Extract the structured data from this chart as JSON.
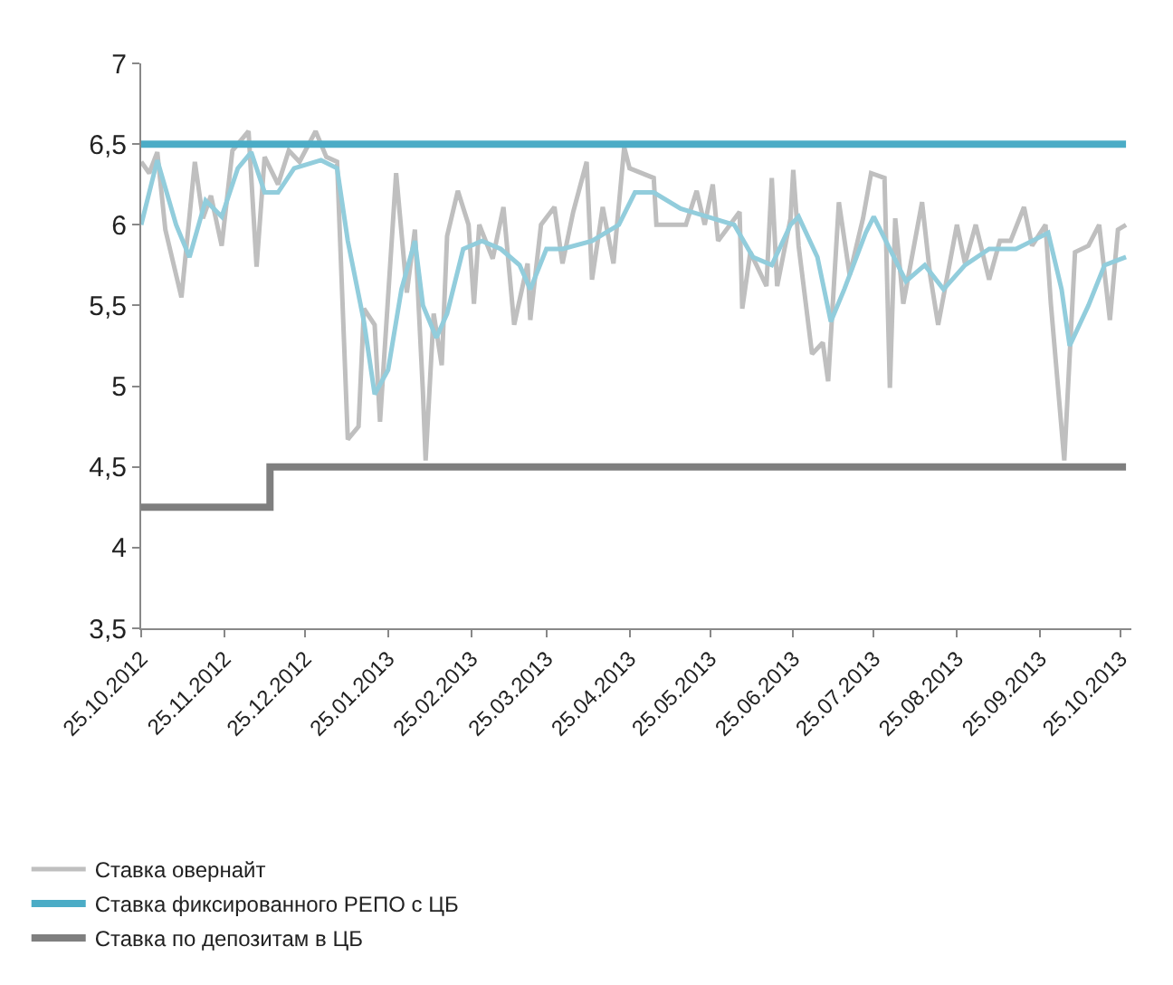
{
  "chart_data": {
    "type": "line",
    "legend": "bottom",
    "marker": "none",
    "line_style": "solid",
    "xlim": [
      "2012-10-25",
      "2013-10-29"
    ],
    "xticks": [
      {
        "value": "2012-10-25",
        "label": "25.10.2012"
      },
      {
        "value": "2012-11-25",
        "label": "25.11.2012"
      },
      {
        "value": "2012-12-25",
        "label": "25.12.2012"
      },
      {
        "value": "2013-01-25",
        "label": "25.01.2013"
      },
      {
        "value": "2013-02-25",
        "label": "25.02.2013"
      },
      {
        "value": "2013-03-25",
        "label": "25.03.2013"
      },
      {
        "value": "2013-04-25",
        "label": "25.04.2013"
      },
      {
        "value": "2013-05-25",
        "label": "25.05.2013"
      },
      {
        "value": "2013-06-25",
        "label": "25.06.2013"
      },
      {
        "value": "2013-07-25",
        "label": "25.07.2013"
      },
      {
        "value": "2013-08-25",
        "label": "25.08.2013"
      },
      {
        "value": "2013-09-25",
        "label": "25.09.2013"
      },
      {
        "value": "2013-10-25",
        "label": "25.10.2013"
      }
    ],
    "ylim": [
      3.5,
      7
    ],
    "yticks": [
      {
        "value": 3.5,
        "label": "3,5"
      },
      4,
      {
        "value": 4.5,
        "label": "4,5"
      },
      5,
      {
        "value": 5.5,
        "label": "5,5"
      },
      6,
      {
        "value": 6.5,
        "label": "6,5"
      },
      7
    ],
    "series": [
      {
        "name": "Ставка овернайт",
        "color": "#bfbfbf",
        "x": [
          "2012-10-25",
          "2012-10-28",
          "2012-10-31",
          "2012-11-03",
          "2012-11-09",
          "2012-11-14",
          "2012-11-17",
          "2012-11-20",
          "2012-11-24",
          "2012-11-28",
          "2012-12-04",
          "2012-12-07",
          "2012-12-10",
          "2012-12-15",
          "2012-12-19",
          "2012-12-23",
          "2012-12-29",
          "2013-01-02",
          "2013-01-06",
          "2013-01-10",
          "2013-01-14",
          "2013-01-16",
          "2013-01-20",
          "2013-01-22",
          "2013-01-28",
          "2013-02-01",
          "2013-02-04",
          "2013-02-07",
          "2013-02-08",
          "2013-02-11",
          "2013-02-14",
          "2013-02-16",
          "2013-02-20",
          "2013-02-24",
          "2013-02-26",
          "2013-02-28",
          "2013-03-05",
          "2013-03-09",
          "2013-03-13",
          "2013-03-18",
          "2013-03-19",
          "2013-03-23",
          "2013-03-28",
          "2013-03-31",
          "2013-04-04",
          "2013-04-09",
          "2013-04-11",
          "2013-04-15",
          "2013-04-19",
          "2013-04-23",
          "2013-04-25",
          "2013-05-04",
          "2013-05-05",
          "2013-05-16",
          "2013-05-20",
          "2013-05-23",
          "2013-05-26",
          "2013-05-28",
          "2013-06-05",
          "2013-06-06",
          "2013-06-09",
          "2013-06-15",
          "2013-06-17",
          "2013-06-19",
          "2013-06-24",
          "2013-06-25",
          "2013-06-27",
          "2013-07-02",
          "2013-07-06",
          "2013-07-08",
          "2013-07-12",
          "2013-07-16",
          "2013-07-21",
          "2013-07-24",
          "2013-07-29",
          "2013-07-31",
          "2013-08-02",
          "2013-08-05",
          "2013-08-12",
          "2013-08-15",
          "2013-08-18",
          "2013-08-25",
          "2013-08-28",
          "2013-09-01",
          "2013-09-06",
          "2013-09-10",
          "2013-09-14",
          "2013-09-19",
          "2013-09-22",
          "2013-09-27",
          "2013-09-29",
          "2013-10-04",
          "2013-10-08",
          "2013-10-13",
          "2013-10-17",
          "2013-10-21",
          "2013-10-24",
          "2013-10-27"
        ],
        "values": [
          6.39,
          6.32,
          6.45,
          5.97,
          5.55,
          6.39,
          6.04,
          6.18,
          5.87,
          6.46,
          6.58,
          5.74,
          6.42,
          6.25,
          6.46,
          6.39,
          6.58,
          6.42,
          6.39,
          4.67,
          4.75,
          5.48,
          5.38,
          4.78,
          6.32,
          5.58,
          5.97,
          4.96,
          4.54,
          5.45,
          5.13,
          5.93,
          6.21,
          6.0,
          5.51,
          6.0,
          5.79,
          6.11,
          5.38,
          5.76,
          5.41,
          6.0,
          6.11,
          5.76,
          6.08,
          6.39,
          5.66,
          6.11,
          5.76,
          6.48,
          6.35,
          6.29,
          6.0,
          6.0,
          6.21,
          6.0,
          6.25,
          5.9,
          6.08,
          5.48,
          5.83,
          5.62,
          6.29,
          5.62,
          6.04,
          6.34,
          5.87,
          5.2,
          5.27,
          5.03,
          6.14,
          5.69,
          6.04,
          6.32,
          6.29,
          4.99,
          6.04,
          5.51,
          6.14,
          5.69,
          5.38,
          6.0,
          5.76,
          6.0,
          5.66,
          5.9,
          5.9,
          6.11,
          5.87,
          6.0,
          5.51,
          4.54,
          5.83,
          5.87,
          6.0,
          5.41,
          5.97,
          6.0
        ]
      },
      {
        "color": "#92cddc",
        "x": [
          "2012-10-25",
          "2012-10-31",
          "2012-11-07",
          "2012-11-12",
          "2012-11-18",
          "2012-11-24",
          "2012-11-30",
          "2012-12-05",
          "2012-12-10",
          "2012-12-15",
          "2012-12-21",
          "2012-12-31",
          "2013-01-06",
          "2013-01-10",
          "2013-01-16",
          "2013-01-20",
          "2013-01-25",
          "2013-01-30",
          "2013-02-04",
          "2013-02-07",
          "2013-02-12",
          "2013-02-16",
          "2013-02-22",
          "2013-03-01",
          "2013-03-08",
          "2013-03-15",
          "2013-03-19",
          "2013-03-25",
          "2013-03-31",
          "2013-04-11",
          "2013-04-21",
          "2013-04-27",
          "2013-05-04",
          "2013-05-14",
          "2013-05-24",
          "2013-06-03",
          "2013-06-10",
          "2013-06-17",
          "2013-06-24",
          "2013-06-27",
          "2013-07-04",
          "2013-07-09",
          "2013-07-14",
          "2013-07-22",
          "2013-07-25",
          "2013-07-31",
          "2013-08-06",
          "2013-08-13",
          "2013-08-20",
          "2013-08-28",
          "2013-09-06",
          "2013-09-16",
          "2013-09-22",
          "2013-09-28",
          "2013-10-03",
          "2013-10-06",
          "2013-10-13",
          "2013-10-19",
          "2013-10-27"
        ],
        "values": [
          6.0,
          6.4,
          6.0,
          5.8,
          6.15,
          6.05,
          6.35,
          6.45,
          6.2,
          6.2,
          6.35,
          6.4,
          6.35,
          5.9,
          5.4,
          4.95,
          5.1,
          5.6,
          5.9,
          5.5,
          5.3,
          5.45,
          5.85,
          5.9,
          5.85,
          5.75,
          5.6,
          5.85,
          5.85,
          5.9,
          6.0,
          6.2,
          6.2,
          6.1,
          6.05,
          6.0,
          5.8,
          5.75,
          6.0,
          6.05,
          5.8,
          5.4,
          5.6,
          5.95,
          6.05,
          5.85,
          5.65,
          5.75,
          5.6,
          5.75,
          5.85,
          5.85,
          5.9,
          5.95,
          5.6,
          5.25,
          5.5,
          5.75,
          5.8
        ]
      },
      {
        "name": "Ставка фиксированного РЕПО с ЦБ",
        "color": "#4bacc6",
        "x": [
          "2012-10-25",
          "2013-10-27"
        ],
        "values": [
          6.5,
          6.5
        ]
      },
      {
        "name": "Ставка по депозитам в ЦБ",
        "type": "step",
        "color": "#7f7f7f",
        "x": [
          "2012-10-25",
          "2012-12-12",
          "2013-10-27"
        ],
        "values": [
          4.25,
          4.5,
          4.5
        ]
      }
    ]
  }
}
